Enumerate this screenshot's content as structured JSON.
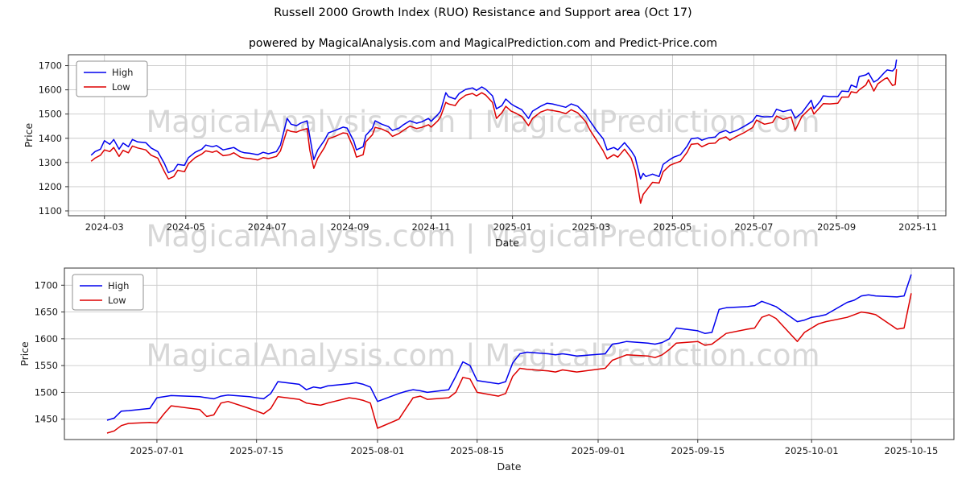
{
  "figure": {
    "title": "Russell 2000 Growth Index (RUO) Resistance and Support area (Oct 17)",
    "subtitle": "powered by MagicalAnalysis.com and MagicalPrediction.com and Predict-Price.com",
    "watermark": "MagicalAnalysis.com | MagicalPrediction.com"
  },
  "colors": {
    "high": "#0000ee",
    "low": "#dd0000",
    "grid": "#c9c9c9",
    "frame": "#333333",
    "text": "#1a1a1a",
    "legend_border": "#8f8f8f"
  },
  "chart_data": [
    {
      "type": "line",
      "title": "",
      "xlabel": "Date",
      "ylabel": "Price",
      "grid": true,
      "legend_position": "upper left",
      "ylim": [
        1080,
        1745
      ],
      "xlim": [
        "2024-02-03",
        "2025-11-22"
      ],
      "yticks": [
        1100,
        1200,
        1300,
        1400,
        1500,
        1600,
        1700
      ],
      "xticks": [
        "2024-03",
        "2024-05",
        "2024-07",
        "2024-09",
        "2024-11",
        "2025-01",
        "2025-03",
        "2025-05",
        "2025-07",
        "2025-09",
        "2025-11"
      ],
      "x": [
        "2024-02-20",
        "2024-02-23",
        "2024-02-27",
        "2024-03-01",
        "2024-03-05",
        "2024-03-08",
        "2024-03-12",
        "2024-03-15",
        "2024-03-19",
        "2024-03-22",
        "2024-03-26",
        "2024-04-01",
        "2024-04-05",
        "2024-04-10",
        "2024-04-15",
        "2024-04-18",
        "2024-04-22",
        "2024-04-25",
        "2024-04-30",
        "2024-05-03",
        "2024-05-08",
        "2024-05-13",
        "2024-05-16",
        "2024-05-21",
        "2024-05-24",
        "2024-05-29",
        "2024-06-03",
        "2024-06-06",
        "2024-06-11",
        "2024-06-14",
        "2024-06-18",
        "2024-06-24",
        "2024-06-28",
        "2024-07-02",
        "2024-07-08",
        "2024-07-11",
        "2024-07-16",
        "2024-07-19",
        "2024-07-23",
        "2024-07-26",
        "2024-07-31",
        "2024-08-02",
        "2024-08-05",
        "2024-08-08",
        "2024-08-13",
        "2024-08-16",
        "2024-08-21",
        "2024-08-27",
        "2024-08-30",
        "2024-09-04",
        "2024-09-06",
        "2024-09-11",
        "2024-09-13",
        "2024-09-18",
        "2024-09-20",
        "2024-09-25",
        "2024-09-30",
        "2024-10-03",
        "2024-10-08",
        "2024-10-11",
        "2024-10-16",
        "2024-10-21",
        "2024-10-25",
        "2024-10-30",
        "2024-11-01",
        "2024-11-06",
        "2024-11-08",
        "2024-11-12",
        "2024-11-14",
        "2024-11-19",
        "2024-11-22",
        "2024-11-27",
        "2024-12-02",
        "2024-12-05",
        "2024-12-09",
        "2024-12-12",
        "2024-12-17",
        "2024-12-20",
        "2024-12-24",
        "2024-12-27",
        "2024-12-31",
        "2025-01-03",
        "2025-01-08",
        "2025-01-13",
        "2025-01-16",
        "2025-01-22",
        "2025-01-27",
        "2025-01-31",
        "2025-02-05",
        "2025-02-10",
        "2025-02-14",
        "2025-02-19",
        "2025-02-25",
        "2025-02-28",
        "2025-03-05",
        "2025-03-10",
        "2025-03-13",
        "2025-03-18",
        "2025-03-21",
        "2025-03-26",
        "2025-03-31",
        "2025-04-03",
        "2025-04-07",
        "2025-04-09",
        "2025-04-11",
        "2025-04-16",
        "2025-04-21",
        "2025-04-24",
        "2025-04-29",
        "2025-05-02",
        "2025-05-07",
        "2025-05-12",
        "2025-05-15",
        "2025-05-20",
        "2025-05-23",
        "2025-05-28",
        "2025-06-02",
        "2025-06-05",
        "2025-06-10",
        "2025-06-13",
        "2025-06-18",
        "2025-06-24",
        "2025-06-30",
        "2025-07-03",
        "2025-07-09",
        "2025-07-15",
        "2025-07-18",
        "2025-07-23",
        "2025-07-29",
        "2025-08-01",
        "2025-08-06",
        "2025-08-13",
        "2025-08-15",
        "2025-08-20",
        "2025-08-22",
        "2025-08-27",
        "2025-09-02",
        "2025-09-05",
        "2025-09-10",
        "2025-09-12",
        "2025-09-16",
        "2025-09-18",
        "2025-09-23",
        "2025-09-25",
        "2025-09-29",
        "2025-10-02",
        "2025-10-07",
        "2025-10-09",
        "2025-10-13",
        "2025-10-15",
        "2025-10-16"
      ],
      "series": [
        {
          "name": "High",
          "color": "#0000ee",
          "values": [
            1330,
            1345,
            1355,
            1390,
            1375,
            1395,
            1355,
            1380,
            1365,
            1395,
            1385,
            1382,
            1360,
            1345,
            1295,
            1258,
            1268,
            1292,
            1288,
            1320,
            1342,
            1355,
            1372,
            1365,
            1370,
            1352,
            1358,
            1362,
            1345,
            1340,
            1338,
            1332,
            1342,
            1336,
            1345,
            1372,
            1482,
            1458,
            1452,
            1462,
            1472,
            1408,
            1312,
            1352,
            1392,
            1422,
            1432,
            1446,
            1442,
            1388,
            1352,
            1365,
            1412,
            1442,
            1472,
            1458,
            1448,
            1432,
            1442,
            1455,
            1472,
            1462,
            1468,
            1482,
            1470,
            1498,
            1512,
            1588,
            1572,
            1562,
            1585,
            1602,
            1608,
            1598,
            1612,
            1602,
            1575,
            1522,
            1535,
            1562,
            1542,
            1532,
            1518,
            1482,
            1512,
            1532,
            1545,
            1542,
            1535,
            1528,
            1542,
            1532,
            1498,
            1472,
            1432,
            1398,
            1352,
            1362,
            1352,
            1382,
            1348,
            1322,
            1232,
            1255,
            1242,
            1252,
            1242,
            1292,
            1312,
            1322,
            1332,
            1368,
            1398,
            1402,
            1392,
            1402,
            1405,
            1422,
            1432,
            1422,
            1432,
            1450,
            1470,
            1494,
            1488,
            1490,
            1520,
            1510,
            1518,
            1483,
            1505,
            1557,
            1522,
            1555,
            1575,
            1572,
            1572,
            1595,
            1593,
            1620,
            1610,
            1655,
            1662,
            1670,
            1632,
            1642,
            1672,
            1682,
            1678,
            1690,
            1725
          ]
        },
        {
          "name": "Low",
          "color": "#dd0000",
          "values": [
            1305,
            1318,
            1330,
            1352,
            1345,
            1362,
            1325,
            1350,
            1340,
            1368,
            1360,
            1352,
            1330,
            1318,
            1262,
            1232,
            1242,
            1268,
            1262,
            1295,
            1320,
            1335,
            1348,
            1342,
            1348,
            1328,
            1332,
            1340,
            1322,
            1318,
            1316,
            1310,
            1320,
            1316,
            1325,
            1348,
            1435,
            1428,
            1425,
            1432,
            1440,
            1352,
            1276,
            1318,
            1362,
            1398,
            1408,
            1422,
            1420,
            1358,
            1322,
            1332,
            1385,
            1415,
            1445,
            1438,
            1425,
            1408,
            1420,
            1432,
            1450,
            1440,
            1445,
            1456,
            1446,
            1472,
            1488,
            1548,
            1542,
            1535,
            1558,
            1578,
            1585,
            1575,
            1588,
            1578,
            1548,
            1482,
            1505,
            1532,
            1512,
            1505,
            1490,
            1452,
            1482,
            1508,
            1518,
            1515,
            1510,
            1502,
            1518,
            1505,
            1468,
            1435,
            1392,
            1348,
            1315,
            1332,
            1322,
            1355,
            1318,
            1268,
            1132,
            1168,
            1182,
            1218,
            1215,
            1262,
            1288,
            1295,
            1305,
            1342,
            1375,
            1378,
            1365,
            1378,
            1380,
            1396,
            1406,
            1392,
            1408,
            1424,
            1444,
            1475,
            1458,
            1465,
            1492,
            1478,
            1488,
            1433,
            1490,
            1528,
            1500,
            1530,
            1543,
            1542,
            1545,
            1570,
            1570,
            1592,
            1588,
            1600,
            1620,
            1642,
            1595,
            1625,
            1645,
            1650,
            1618,
            1622,
            1685
          ]
        }
      ]
    },
    {
      "type": "line",
      "title": "",
      "xlabel": "Date",
      "ylabel": "Price",
      "grid": true,
      "legend_position": "upper left",
      "ylim": [
        1412,
        1732
      ],
      "xlim": [
        "2025-06-18",
        "2025-10-21"
      ],
      "yticks": [
        1450,
        1500,
        1550,
        1600,
        1650,
        1700
      ],
      "xticks": [
        "2025-07-01",
        "2025-07-15",
        "2025-08-01",
        "2025-08-15",
        "2025-09-01",
        "2025-09-15",
        "2025-10-01",
        "2025-10-15"
      ],
      "x": [
        "2025-06-24",
        "2025-06-25",
        "2025-06-26",
        "2025-06-27",
        "2025-06-30",
        "2025-07-01",
        "2025-07-02",
        "2025-07-03",
        "2025-07-07",
        "2025-07-08",
        "2025-07-09",
        "2025-07-10",
        "2025-07-11",
        "2025-07-14",
        "2025-07-15",
        "2025-07-16",
        "2025-07-17",
        "2025-07-18",
        "2025-07-21",
        "2025-07-22",
        "2025-07-23",
        "2025-07-24",
        "2025-07-25",
        "2025-07-28",
        "2025-07-29",
        "2025-07-30",
        "2025-07-31",
        "2025-08-01",
        "2025-08-04",
        "2025-08-05",
        "2025-08-06",
        "2025-08-07",
        "2025-08-08",
        "2025-08-11",
        "2025-08-12",
        "2025-08-13",
        "2025-08-14",
        "2025-08-15",
        "2025-08-18",
        "2025-08-19",
        "2025-08-20",
        "2025-08-21",
        "2025-08-22",
        "2025-08-25",
        "2025-08-26",
        "2025-08-27",
        "2025-08-28",
        "2025-08-29",
        "2025-09-02",
        "2025-09-03",
        "2025-09-04",
        "2025-09-05",
        "2025-09-08",
        "2025-09-09",
        "2025-09-10",
        "2025-09-11",
        "2025-09-12",
        "2025-09-15",
        "2025-09-16",
        "2025-09-17",
        "2025-09-18",
        "2025-09-19",
        "2025-09-22",
        "2025-09-23",
        "2025-09-24",
        "2025-09-25",
        "2025-09-26",
        "2025-09-29",
        "2025-09-30",
        "2025-10-01",
        "2025-10-02",
        "2025-10-03",
        "2025-10-06",
        "2025-10-07",
        "2025-10-08",
        "2025-10-09",
        "2025-10-10",
        "2025-10-13",
        "2025-10-14",
        "2025-10-15"
      ],
      "series": [
        {
          "name": "High",
          "color": "#0000ee",
          "values": [
            1448,
            1452,
            1465,
            1466,
            1470,
            1490,
            1492,
            1494,
            1492,
            1490,
            1488,
            1493,
            1495,
            1492,
            1490,
            1488,
            1498,
            1520,
            1515,
            1505,
            1510,
            1508,
            1512,
            1516,
            1518,
            1515,
            1510,
            1483,
            1498,
            1502,
            1505,
            1503,
            1500,
            1505,
            1530,
            1557,
            1550,
            1522,
            1516,
            1520,
            1555,
            1572,
            1575,
            1572,
            1570,
            1572,
            1570,
            1568,
            1572,
            1590,
            1592,
            1595,
            1592,
            1590,
            1593,
            1600,
            1620,
            1615,
            1610,
            1612,
            1655,
            1658,
            1660,
            1662,
            1670,
            1665,
            1660,
            1632,
            1635,
            1640,
            1642,
            1645,
            1668,
            1672,
            1680,
            1682,
            1680,
            1678,
            1680,
            1720
          ]
        },
        {
          "name": "Low",
          "color": "#dd0000",
          "values": [
            1424,
            1428,
            1438,
            1442,
            1444,
            1443,
            1460,
            1475,
            1468,
            1455,
            1458,
            1480,
            1483,
            1470,
            1465,
            1460,
            1470,
            1492,
            1487,
            1480,
            1478,
            1476,
            1480,
            1490,
            1488,
            1485,
            1480,
            1433,
            1450,
            1470,
            1490,
            1493,
            1487,
            1490,
            1500,
            1528,
            1525,
            1500,
            1493,
            1498,
            1530,
            1545,
            1543,
            1540,
            1538,
            1542,
            1540,
            1538,
            1545,
            1560,
            1565,
            1570,
            1568,
            1565,
            1570,
            1580,
            1592,
            1595,
            1588,
            1590,
            1600,
            1610,
            1618,
            1620,
            1640,
            1645,
            1638,
            1595,
            1612,
            1620,
            1628,
            1632,
            1640,
            1645,
            1650,
            1648,
            1645,
            1618,
            1620,
            1685
          ]
        }
      ]
    }
  ]
}
